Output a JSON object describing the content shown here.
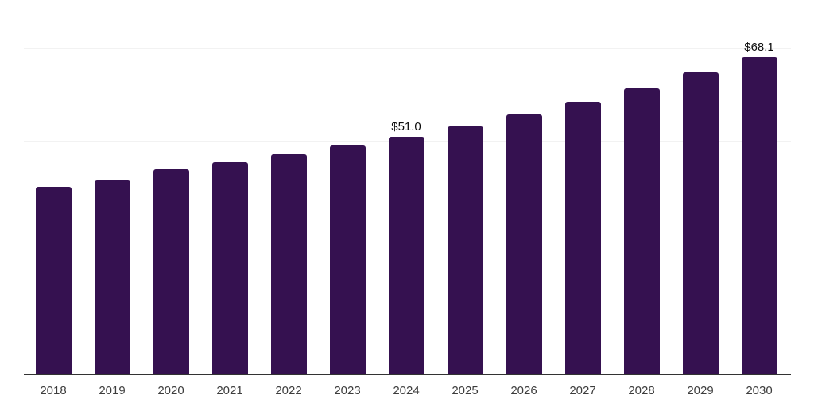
{
  "chart_data": {
    "type": "bar",
    "title": "",
    "xlabel": "",
    "ylabel": "",
    "categories": [
      "2018",
      "2019",
      "2020",
      "2021",
      "2022",
      "2023",
      "2024",
      "2025",
      "2026",
      "2027",
      "2028",
      "2029",
      "2030"
    ],
    "values": [
      40.1,
      41.6,
      43.9,
      45.4,
      47.1,
      49.0,
      51.0,
      53.2,
      55.7,
      58.5,
      61.4,
      64.8,
      68.1
    ],
    "data_labels": [
      "",
      "",
      "",
      "",
      "",
      "",
      "$51.0",
      "",
      "",
      "",
      "",
      "",
      "$68.1"
    ],
    "ylim": [
      0,
      80
    ],
    "gridline_step": 10,
    "grid": "horizontal",
    "legend": "none",
    "colors": {
      "bar": "#351150",
      "gridline": "#f2f2f2",
      "axis_line": "#333333",
      "tick_label": "#3d3d3d",
      "data_label": "#0d0d0d",
      "background": "#ffffff"
    }
  }
}
